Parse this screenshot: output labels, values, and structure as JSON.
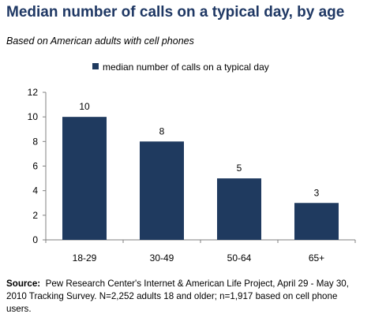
{
  "header": {
    "title": "Median number of calls on a typical day, by age",
    "subtitle": "Based on American adults with cell phones"
  },
  "chart_data": {
    "type": "bar",
    "categories": [
      "18-29",
      "30-49",
      "50-64",
      "65+"
    ],
    "series": [
      {
        "name": "median number of calls on a typical day",
        "values": [
          10,
          8,
          5,
          3
        ]
      }
    ],
    "ylim": [
      0,
      12
    ],
    "yticks": [
      0,
      2,
      4,
      6,
      8,
      10,
      12
    ],
    "grid": false,
    "legend": "top",
    "data_labels": true,
    "colors": {
      "bar": "#1f3a5f",
      "axis": "#808080"
    }
  },
  "source": {
    "label": "Source:",
    "text": "Pew Research Center's Internet & American Life Project, April 29 - May 30, 2010 Tracking Survey. N=2,252 adults 18 and older; n=1,917 based on cell phone users."
  }
}
